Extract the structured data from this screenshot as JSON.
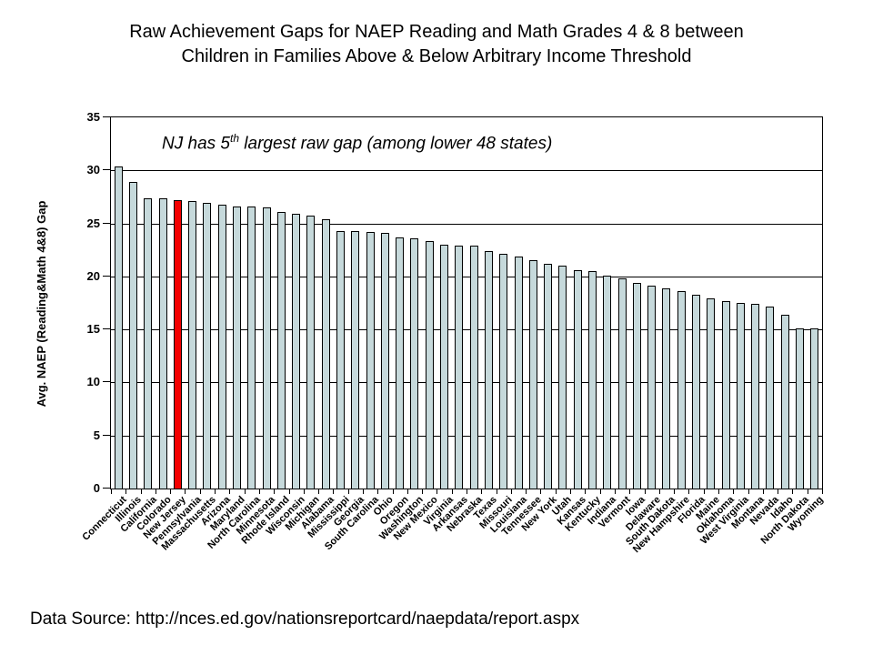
{
  "title": {
    "line1": "Raw Achievement Gaps for NAEP Reading and Math Grades 4 & 8 between",
    "line2": "Children in Families Above & Below Arbitrary Income Threshold"
  },
  "annotation": {
    "prefix": "NJ has 5",
    "superscript": "th",
    "suffix": " largest raw gap (among lower 48 states)"
  },
  "source": {
    "text": "Data Source: http://nces.ed.gov/nationsreportcard/naepdata/report.aspx"
  },
  "chart_data": {
    "type": "bar",
    "title": "Raw Achievement Gaps for NAEP Reading and Math Grades 4 & 8 between Children in Families Above & Below Arbitrary Income Threshold",
    "xlabel": "",
    "ylabel": "Avg. NAEP (Reading&Math 4&8) Gap",
    "ylim": [
      0,
      35
    ],
    "y_ticks": [
      0,
      5,
      10,
      15,
      20,
      25,
      30,
      35
    ],
    "grid": "horizontal",
    "legend": "none",
    "bar_color": "#C6D9DB",
    "bar_border_color": "#000000",
    "highlight_color": "#F40000",
    "highlight_index": 4,
    "highlight_category": "New Jersey",
    "categories": [
      "Connecticut",
      "Illinois",
      "California",
      "Colorado",
      "New Jersey",
      "Pennsylvania",
      "Massachusetts",
      "Arizona",
      "Maryland",
      "North Carolina",
      "Minnesota",
      "Rhode Island",
      "Wisconsin",
      "Michigan",
      "Alabama",
      "Mississippi",
      "Georgia",
      "South Carolina",
      "Ohio",
      "Oregon",
      "Washington",
      "New Mexico",
      "Virginia",
      "Arkansas",
      "Nebraska",
      "Texas",
      "Missouri",
      "Louisiana",
      "Tennessee",
      "New York",
      "Utah",
      "Kansas",
      "Kentucky",
      "Indiana",
      "Vermont",
      "Iowa",
      "Delaware",
      "South Dakota",
      "New Hampshire",
      "Florida",
      "Maine",
      "Oklahoma",
      "West Virginia",
      "Montana",
      "Nevada",
      "Idaho",
      "North Dakota",
      "Wyoming"
    ],
    "values": [
      30.4,
      28.9,
      27.4,
      27.4,
      27.2,
      27.1,
      26.9,
      26.8,
      26.6,
      26.6,
      26.5,
      26.1,
      25.9,
      25.7,
      25.4,
      24.3,
      24.3,
      24.2,
      24.1,
      23.7,
      23.6,
      23.3,
      23.0,
      22.9,
      22.9,
      22.4,
      22.1,
      21.9,
      21.5,
      21.2,
      21.0,
      20.6,
      20.5,
      20.1,
      19.8,
      19.4,
      19.1,
      18.9,
      18.6,
      18.3,
      17.9,
      17.7,
      17.5,
      17.4,
      17.2,
      16.4,
      15.1,
      15.1
    ]
  }
}
